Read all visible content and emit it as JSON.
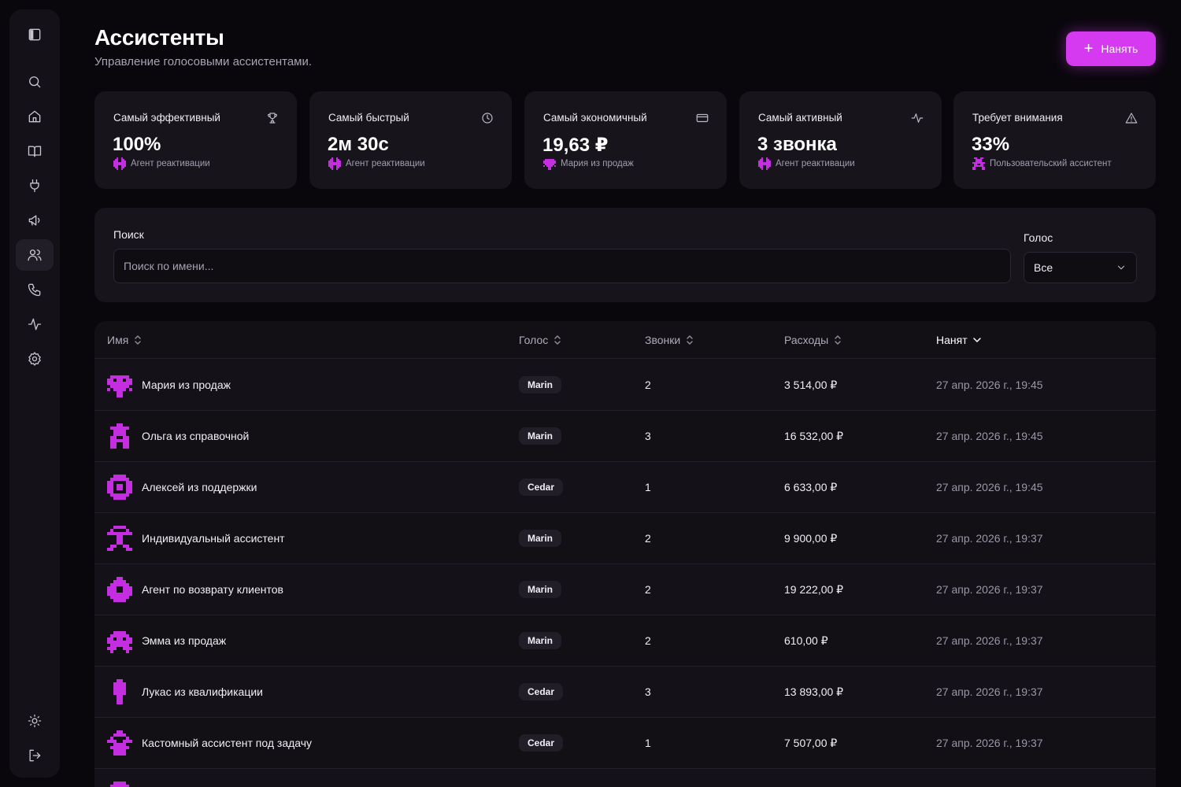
{
  "sidebar": {
    "items": [
      {
        "icon": "panel-toggle-icon"
      },
      {
        "icon": "search-icon"
      },
      {
        "icon": "home-icon"
      },
      {
        "icon": "book-icon"
      },
      {
        "icon": "plug-icon"
      },
      {
        "icon": "megaphone-icon"
      },
      {
        "icon": "users-icon",
        "active": true
      },
      {
        "icon": "phone-icon"
      },
      {
        "icon": "activity-icon"
      },
      {
        "icon": "settings-icon"
      },
      {
        "icon": "sun-icon"
      },
      {
        "icon": "logout-icon"
      }
    ]
  },
  "header": {
    "title": "Ассистенты",
    "subtitle": "Управление голосовыми ассистентами.",
    "hire_label": "Нанять"
  },
  "stats": [
    {
      "label": "Самый эффективный",
      "value": "100%",
      "sub": "Агент реактивации",
      "icon": "trophy-icon"
    },
    {
      "label": "Самый быстрый",
      "value": "2м 30с",
      "sub": "Агент реактивации",
      "icon": "clock-icon"
    },
    {
      "label": "Самый экономичный",
      "value": "19,63 ₽",
      "sub": "Мария из продаж",
      "icon": "credit-card-icon"
    },
    {
      "label": "Самый активный",
      "value": "3 звонка",
      "sub": "Агент реактивации",
      "icon": "activity-icon"
    },
    {
      "label": "Требует внимания",
      "value": "33%",
      "sub": "Пользовательский ассистент",
      "icon": "warning-icon"
    }
  ],
  "filters": {
    "search_label": "Поиск",
    "search_placeholder": "Поиск по имени...",
    "search_value": "",
    "voice_label": "Голос",
    "voice_value": "Все"
  },
  "table": {
    "columns": {
      "name": "Имя",
      "voice": "Голос",
      "calls": "Звонки",
      "cost": "Расходы",
      "hired": "Нанят"
    },
    "rows": [
      {
        "name": "Мария из продаж",
        "voice": "Marin",
        "calls": "2",
        "cost": "3 514,00 ₽",
        "hired": "27 апр. 2026 г., 19:45"
      },
      {
        "name": "Ольга из справочной",
        "voice": "Marin",
        "calls": "3",
        "cost": "16 532,00 ₽",
        "hired": "27 апр. 2026 г., 19:45"
      },
      {
        "name": "Алексей из поддержки",
        "voice": "Cedar",
        "calls": "1",
        "cost": "6 633,00 ₽",
        "hired": "27 апр. 2026 г., 19:45"
      },
      {
        "name": "Индивидуальный ассистент",
        "voice": "Marin",
        "calls": "2",
        "cost": "9 900,00 ₽",
        "hired": "27 апр. 2026 г., 19:37"
      },
      {
        "name": "Агент по возврату клиентов",
        "voice": "Marin",
        "calls": "2",
        "cost": "19 222,00 ₽",
        "hired": "27 апр. 2026 г., 19:37"
      },
      {
        "name": "Эмма из продаж",
        "voice": "Marin",
        "calls": "2",
        "cost": "610,00 ₽",
        "hired": "27 апр. 2026 г., 19:37"
      },
      {
        "name": "Лукас из квалификации",
        "voice": "Cedar",
        "calls": "3",
        "cost": "13 893,00 ₽",
        "hired": "27 апр. 2026 г., 19:37"
      },
      {
        "name": "Кастомный ассистент под задачу",
        "voice": "Cedar",
        "calls": "1",
        "cost": "7 507,00 ₽",
        "hired": "27 апр. 2026 г., 19:37"
      }
    ]
  },
  "colors": {
    "accent": "#d63af0",
    "background": "#09070c",
    "card": "#17141b"
  }
}
